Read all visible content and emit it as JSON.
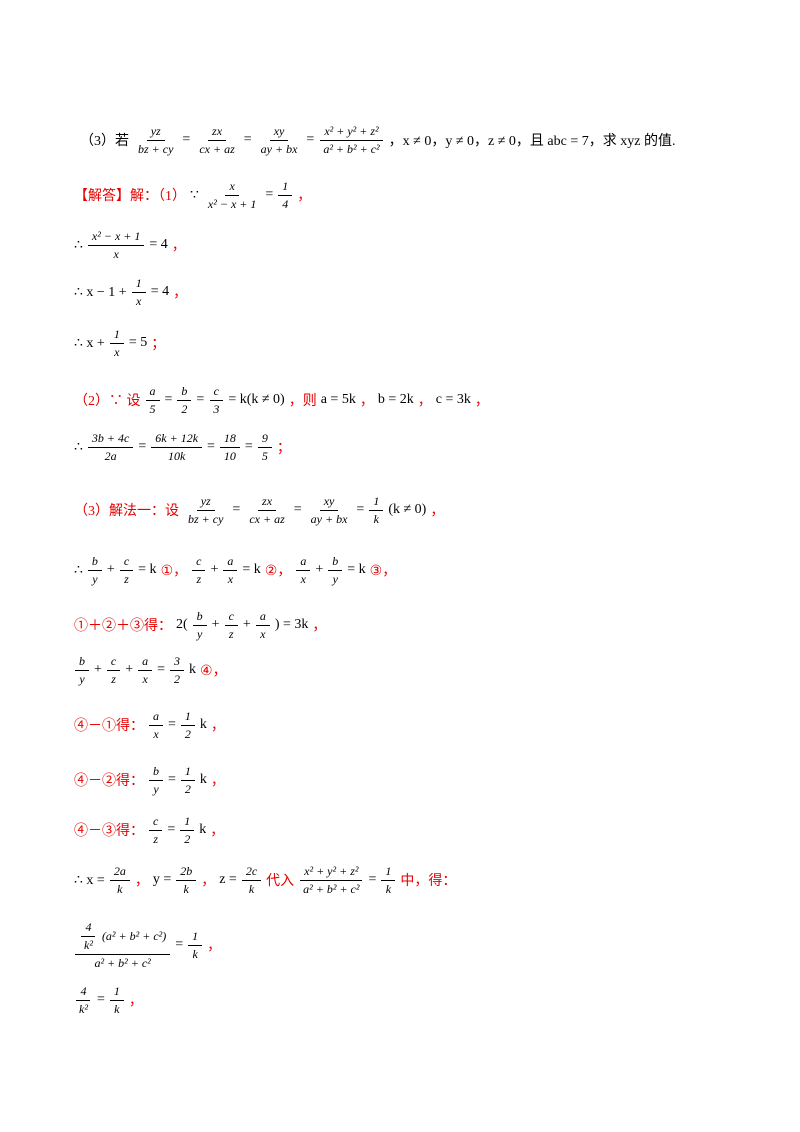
{
  "lines": [
    {
      "parts": [
        {
          "t": "（3）若"
        },
        {
          "n": [
            {
              "t": "yz"
            }
          ],
          "d": [
            {
              "t": "bz + cy"
            }
          ]
        },
        {
          "t": "="
        },
        {
          "n": [
            {
              "t": "zx"
            }
          ],
          "d": [
            {
              "t": "cx + az"
            }
          ]
        },
        {
          "t": "="
        },
        {
          "n": [
            {
              "t": "xy"
            }
          ],
          "d": [
            {
              "t": "ay + bx"
            }
          ]
        },
        {
          "t": "="
        },
        {
          "n": [
            {
              "t": "x² + y² + z²"
            }
          ],
          "d": [
            {
              "t": "a² + b² + c²"
            }
          ]
        },
        {
          "t": "，x ≠ 0，y ≠ 0，z ≠ 0，且 abc = 7，求 xyz 的值."
        }
      ]
    },
    {
      "parts": [
        {
          "t": "【解答】解：（1）",
          "c": "#e60000"
        },
        {
          "t": "∵"
        },
        {
          "n": [
            {
              "t": "x"
            }
          ],
          "d": [
            {
              "t": "x² − x + 1"
            }
          ]
        },
        {
          "t": "="
        },
        {
          "n": [
            {
              "t": "1"
            }
          ],
          "d": [
            {
              "t": "4"
            }
          ]
        },
        {
          "t": "，",
          "c": "#e60000"
        }
      ]
    },
    {
      "parts": [
        {
          "t": "∴"
        },
        {
          "n": [
            {
              "t": "x² − x + 1"
            }
          ],
          "d": [
            {
              "t": "x"
            }
          ]
        },
        {
          "t": "= 4"
        },
        {
          "t": "，",
          "c": "#e60000"
        }
      ]
    },
    {
      "parts": [
        {
          "t": "∴ x − 1 +"
        },
        {
          "n": [
            {
              "t": "1"
            }
          ],
          "d": [
            {
              "t": "x"
            }
          ]
        },
        {
          "t": "= 4"
        },
        {
          "t": "，",
          "c": "#e60000"
        }
      ]
    },
    {
      "parts": [
        {
          "t": "∴ x +"
        },
        {
          "n": [
            {
              "t": "1"
            }
          ],
          "d": [
            {
              "t": "x"
            }
          ]
        },
        {
          "t": "= 5"
        },
        {
          "t": "；",
          "c": "#e60000"
        }
      ]
    },
    {
      "parts": [
        {
          "t": "（2）∵ 设",
          "c": "#e60000"
        },
        {
          "n": [
            {
              "t": "a"
            }
          ],
          "d": [
            {
              "t": "5"
            }
          ]
        },
        {
          "t": "="
        },
        {
          "n": [
            {
              "t": "b"
            }
          ],
          "d": [
            {
              "t": "2"
            }
          ]
        },
        {
          "t": "="
        },
        {
          "n": [
            {
              "t": "c"
            }
          ],
          "d": [
            {
              "t": "3"
            }
          ]
        },
        {
          "t": "= k(k ≠ 0)"
        },
        {
          "t": "，则",
          "c": "#e60000"
        },
        {
          "t": "a = 5k"
        },
        {
          "t": "，",
          "c": "#e60000"
        },
        {
          "t": "b = 2k"
        },
        {
          "t": "，",
          "c": "#e60000"
        },
        {
          "t": "c = 3k"
        },
        {
          "t": "，",
          "c": "#e60000"
        }
      ]
    },
    {
      "parts": [
        {
          "t": "∴"
        },
        {
          "n": [
            {
              "t": "3b + 4c"
            }
          ],
          "d": [
            {
              "t": "2a"
            }
          ]
        },
        {
          "t": "="
        },
        {
          "n": [
            {
              "t": "6k + 12k"
            }
          ],
          "d": [
            {
              "t": "10k"
            }
          ]
        },
        {
          "t": "="
        },
        {
          "n": [
            {
              "t": "18"
            }
          ],
          "d": [
            {
              "t": "10"
            }
          ]
        },
        {
          "t": "="
        },
        {
          "n": [
            {
              "t": "9"
            }
          ],
          "d": [
            {
              "t": "5"
            }
          ]
        },
        {
          "t": "；",
          "c": "#e60000"
        }
      ]
    },
    {
      "parts": [
        {
          "t": "（3）解法一：设",
          "c": "#e60000"
        },
        {
          "n": [
            {
              "t": "yz"
            }
          ],
          "d": [
            {
              "t": "bz + cy"
            }
          ]
        },
        {
          "t": "="
        },
        {
          "n": [
            {
              "t": "zx"
            }
          ],
          "d": [
            {
              "t": "cx + az"
            }
          ]
        },
        {
          "t": "="
        },
        {
          "n": [
            {
              "t": "xy"
            }
          ],
          "d": [
            {
              "t": "ay + bx"
            }
          ]
        },
        {
          "t": "="
        },
        {
          "n": [
            {
              "t": "1"
            }
          ],
          "d": [
            {
              "t": "k"
            }
          ]
        },
        {
          "t": "(k ≠ 0)"
        },
        {
          "t": "，",
          "c": "#e60000"
        }
      ]
    },
    {
      "parts": [
        {
          "t": "∴"
        },
        {
          "n": [
            {
              "t": "b"
            }
          ],
          "d": [
            {
              "t": "y"
            }
          ]
        },
        {
          "t": "+"
        },
        {
          "n": [
            {
              "t": "c"
            }
          ],
          "d": [
            {
              "t": "z"
            }
          ]
        },
        {
          "t": "= k"
        },
        {
          "t": "①，",
          "c": "#e60000"
        },
        {
          "n": [
            {
              "t": "c"
            }
          ],
          "d": [
            {
              "t": "z"
            }
          ]
        },
        {
          "t": "+"
        },
        {
          "n": [
            {
              "t": "a"
            }
          ],
          "d": [
            {
              "t": "x"
            }
          ]
        },
        {
          "t": "= k"
        },
        {
          "t": "②，",
          "c": "#e60000"
        },
        {
          "n": [
            {
              "t": "a"
            }
          ],
          "d": [
            {
              "t": "x"
            }
          ]
        },
        {
          "t": "+"
        },
        {
          "n": [
            {
              "t": "b"
            }
          ],
          "d": [
            {
              "t": "y"
            }
          ]
        },
        {
          "t": "= k"
        },
        {
          "t": "③，",
          "c": "#e60000"
        }
      ]
    },
    {
      "parts": [
        {
          "t": "①＋②＋③得：",
          "c": "#e60000"
        },
        {
          "t": "2("
        },
        {
          "n": [
            {
              "t": "b"
            }
          ],
          "d": [
            {
              "t": "y"
            }
          ]
        },
        {
          "t": "+"
        },
        {
          "n": [
            {
              "t": "c"
            }
          ],
          "d": [
            {
              "t": "z"
            }
          ]
        },
        {
          "t": "+"
        },
        {
          "n": [
            {
              "t": "a"
            }
          ],
          "d": [
            {
              "t": "x"
            }
          ]
        },
        {
          "t": ") = 3k"
        },
        {
          "t": "，",
          "c": "#e60000"
        }
      ]
    },
    {
      "parts": [
        {
          "n": [
            {
              "t": "b"
            }
          ],
          "d": [
            {
              "t": "y"
            }
          ]
        },
        {
          "t": "+"
        },
        {
          "n": [
            {
              "t": "c"
            }
          ],
          "d": [
            {
              "t": "z"
            }
          ]
        },
        {
          "t": "+"
        },
        {
          "n": [
            {
              "t": "a"
            }
          ],
          "d": [
            {
              "t": "x"
            }
          ]
        },
        {
          "t": "="
        },
        {
          "n": [
            {
              "t": "3"
            }
          ],
          "d": [
            {
              "t": "2"
            }
          ]
        },
        {
          "t": "k"
        },
        {
          "t": "④，",
          "c": "#e60000"
        }
      ]
    },
    {
      "parts": [
        {
          "t": "④－①得：",
          "c": "#e60000"
        },
        {
          "n": [
            {
              "t": "a"
            }
          ],
          "d": [
            {
              "t": "x"
            }
          ]
        },
        {
          "t": "="
        },
        {
          "n": [
            {
              "t": "1"
            }
          ],
          "d": [
            {
              "t": "2"
            }
          ]
        },
        {
          "t": "k"
        },
        {
          "t": "，",
          "c": "#e60000"
        }
      ]
    },
    {
      "parts": [
        {
          "t": "④－②得：",
          "c": "#e60000"
        },
        {
          "n": [
            {
              "t": "b"
            }
          ],
          "d": [
            {
              "t": "y"
            }
          ]
        },
        {
          "t": "="
        },
        {
          "n": [
            {
              "t": "1"
            }
          ],
          "d": [
            {
              "t": "2"
            }
          ]
        },
        {
          "t": "k"
        },
        {
          "t": "，",
          "c": "#e60000"
        }
      ]
    },
    {
      "parts": [
        {
          "t": "④－③得：",
          "c": "#e60000"
        },
        {
          "n": [
            {
              "t": "c"
            }
          ],
          "d": [
            {
              "t": "z"
            }
          ]
        },
        {
          "t": "="
        },
        {
          "n": [
            {
              "t": "1"
            }
          ],
          "d": [
            {
              "t": "2"
            }
          ]
        },
        {
          "t": "k"
        },
        {
          "t": "，",
          "c": "#e60000"
        }
      ]
    },
    {
      "parts": [
        {
          "t": "∴ x ="
        },
        {
          "n": [
            {
              "t": "2a"
            }
          ],
          "d": [
            {
              "t": "k"
            }
          ]
        },
        {
          "t": "，",
          "c": "#e60000"
        },
        {
          "t": "y ="
        },
        {
          "n": [
            {
              "t": "2b"
            }
          ],
          "d": [
            {
              "t": "k"
            }
          ]
        },
        {
          "t": "，",
          "c": "#e60000"
        },
        {
          "t": "z ="
        },
        {
          "n": [
            {
              "t": "2c"
            }
          ],
          "d": [
            {
              "t": "k"
            }
          ]
        },
        {
          "t": "代入",
          "c": "#e60000"
        },
        {
          "n": [
            {
              "t": "x² + y² + z²"
            }
          ],
          "d": [
            {
              "t": "a² + b² + c²"
            }
          ]
        },
        {
          "t": "="
        },
        {
          "n": [
            {
              "t": "1"
            }
          ],
          "d": [
            {
              "t": "k"
            }
          ]
        },
        {
          "t": "中，得：",
          "c": "#e60000"
        }
      ]
    },
    {
      "parts": [
        {
          "n": [
            {
              "n": [
                {
                  "t": "4"
                }
              ],
              "d": [
                {
                  "t": "k²"
                }
              ]
            },
            {
              "t": "(a² + b² + c²)"
            }
          ],
          "d": [
            {
              "t": "a² + b² + c²"
            }
          ]
        },
        {
          "t": "="
        },
        {
          "n": [
            {
              "t": "1"
            }
          ],
          "d": [
            {
              "t": "k"
            }
          ]
        },
        {
          "t": "，",
          "c": "#e60000"
        }
      ]
    },
    {
      "parts": [
        {
          "n": [
            {
              "t": "4"
            }
          ],
          "d": [
            {
              "t": "k²"
            }
          ]
        },
        {
          "t": "="
        },
        {
          "n": [
            {
              "t": "1"
            }
          ],
          "d": [
            {
              "t": "k"
            }
          ]
        },
        {
          "t": "，",
          "c": "#e60000"
        }
      ]
    }
  ]
}
